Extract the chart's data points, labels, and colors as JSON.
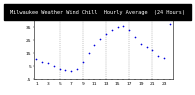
{
  "title": "Milwaukee Weather Wind Chill  Hourly Average  (24 Hours)",
  "hours": [
    1,
    2,
    3,
    4,
    5,
    6,
    7,
    8,
    9,
    10,
    11,
    12,
    13,
    14,
    15,
    16,
    17,
    18,
    19,
    20,
    21,
    22,
    23,
    24
  ],
  "wind_chill": [
    10,
    8,
    7,
    5,
    3,
    2,
    1,
    3,
    8,
    15,
    21,
    26,
    30,
    33,
    35,
    36,
    33,
    27,
    22,
    20,
    17,
    13,
    11,
    37
  ],
  "dot_color": "#0000dd",
  "bg_color": "#ffffff",
  "title_bg_color": "#000000",
  "title_fg_color": "#ffffff",
  "grid_color": "#888888",
  "ylim": [
    -5,
    42
  ],
  "ytick_vals": [
    -5,
    5,
    15,
    25,
    35
  ],
  "ytick_labels": [
    "-5",
    "5",
    "15",
    "25",
    "35"
  ],
  "vline_hours": [
    5,
    9,
    13,
    17,
    21
  ],
  "title_fontsize": 3.8,
  "tick_fontsize": 3.2,
  "dot_size": 1.5,
  "marker": "."
}
